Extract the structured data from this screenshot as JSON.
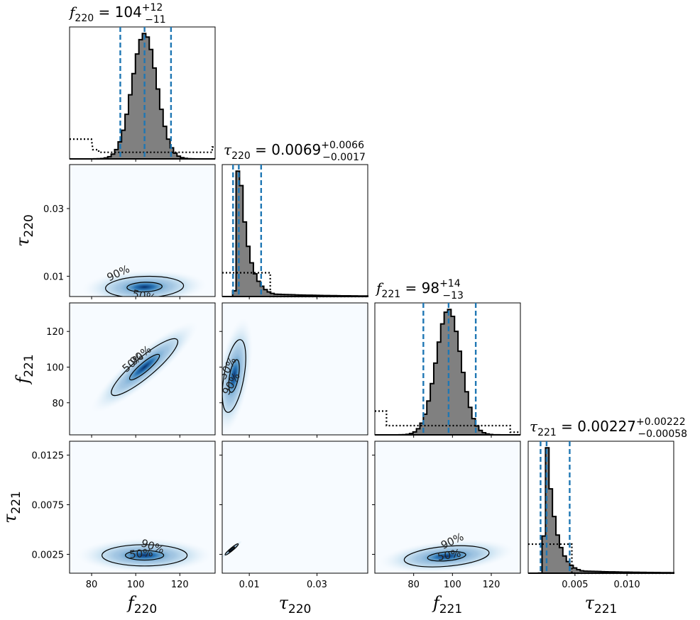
{
  "chart_data": {
    "type": "corner",
    "parameters": [
      {
        "symbol": "f",
        "sub": "220",
        "ticks": [
          "80",
          "100",
          "120"
        ],
        "tick_values": [
          80,
          100,
          120
        ],
        "range": [
          70,
          136
        ],
        "title_value": "104",
        "err_plus": "+12",
        "err_minus": "−11",
        "median": 104,
        "lower": 93,
        "upper": 116
      },
      {
        "symbol": "τ",
        "sub": "220",
        "ticks": [
          "0.01",
          "0.03"
        ],
        "tick_values": [
          0.01,
          0.03
        ],
        "range": [
          0.002,
          0.045
        ],
        "title_value": "0.0069",
        "err_plus": "+0.0066",
        "err_minus": "−0.0017",
        "median": 0.0069,
        "lower": 0.0052,
        "upper": 0.0135
      },
      {
        "symbol": "f",
        "sub": "221",
        "ticks": [
          "80",
          "100",
          "120"
        ],
        "tick_values": [
          80,
          100,
          120
        ],
        "range": [
          60,
          135
        ],
        "title_value": "98",
        "err_plus": "+14",
        "err_minus": "−13",
        "median": 98,
        "lower": 85,
        "upper": 112
      },
      {
        "symbol": "τ",
        "sub": "221",
        "ticks": [
          "0.005",
          "0.010"
        ],
        "tick_values": [
          0.005,
          0.01
        ],
        "range": [
          0.0005,
          0.0145
        ],
        "title_value": "0.00227",
        "err_plus": "+0.00222",
        "err_minus": "−0.00058",
        "median": 0.00227,
        "lower": 0.00169,
        "upper": 0.00449
      }
    ],
    "y_ticks": {
      "1": {
        "ticks": [
          "0.01",
          "0.03"
        ],
        "tick_values": [
          0.01,
          0.03
        ],
        "range": [
          0.004,
          0.043
        ]
      },
      "2": {
        "ticks": [
          "80",
          "100",
          "120"
        ],
        "tick_values": [
          80,
          100,
          120
        ],
        "range": [
          62,
          136
        ]
      },
      "3": {
        "ticks": [
          "0.0025",
          "0.0075",
          "0.0125"
        ],
        "tick_values": [
          0.0025,
          0.0075,
          0.0125
        ],
        "range": [
          0.0006,
          0.0139
        ]
      }
    },
    "contour_levels": [
      "50%",
      "90%"
    ],
    "colors": {
      "hist_fill": "#808080",
      "hist_edge": "#000000",
      "quantile_line": "#1f77b4",
      "density": "#08306b",
      "density_light": "#f7fbff"
    }
  }
}
